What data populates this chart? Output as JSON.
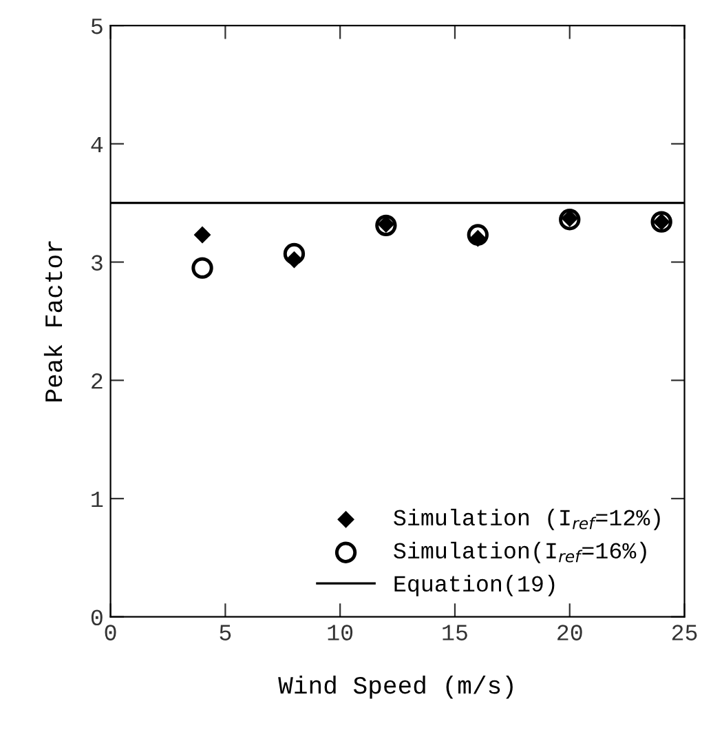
{
  "chart_data": {
    "type": "scatter",
    "xlabel": "Wind Speed (m/s)",
    "ylabel": "Peak Factor",
    "x": [
      4,
      8,
      12,
      16,
      20,
      24
    ],
    "series": [
      {
        "name": "Simulation (I$_{ref}$=12%)",
        "color": "#000000",
        "marker": "diamond",
        "values": [
          3.23,
          3.02,
          3.32,
          3.2,
          3.37,
          3.34
        ]
      },
      {
        "name": "Simulation(I$_{ref}$=16%)",
        "color": "#000000",
        "marker": "circle",
        "values": [
          2.95,
          3.07,
          3.31,
          3.23,
          3.36,
          3.34
        ]
      }
    ],
    "ref_lines": [
      {
        "axis": "y",
        "value": 3.5,
        "label": "Equation(19)",
        "color": "#000000",
        "line_style": "solid"
      }
    ],
    "xlim": [
      0,
      25
    ],
    "ylim": [
      0,
      5
    ],
    "xticks": [
      0,
      5,
      10,
      15,
      20,
      25
    ],
    "yticks": [
      0,
      1,
      2,
      3,
      4,
      5
    ],
    "grid": false,
    "legend": "bottom right"
  }
}
